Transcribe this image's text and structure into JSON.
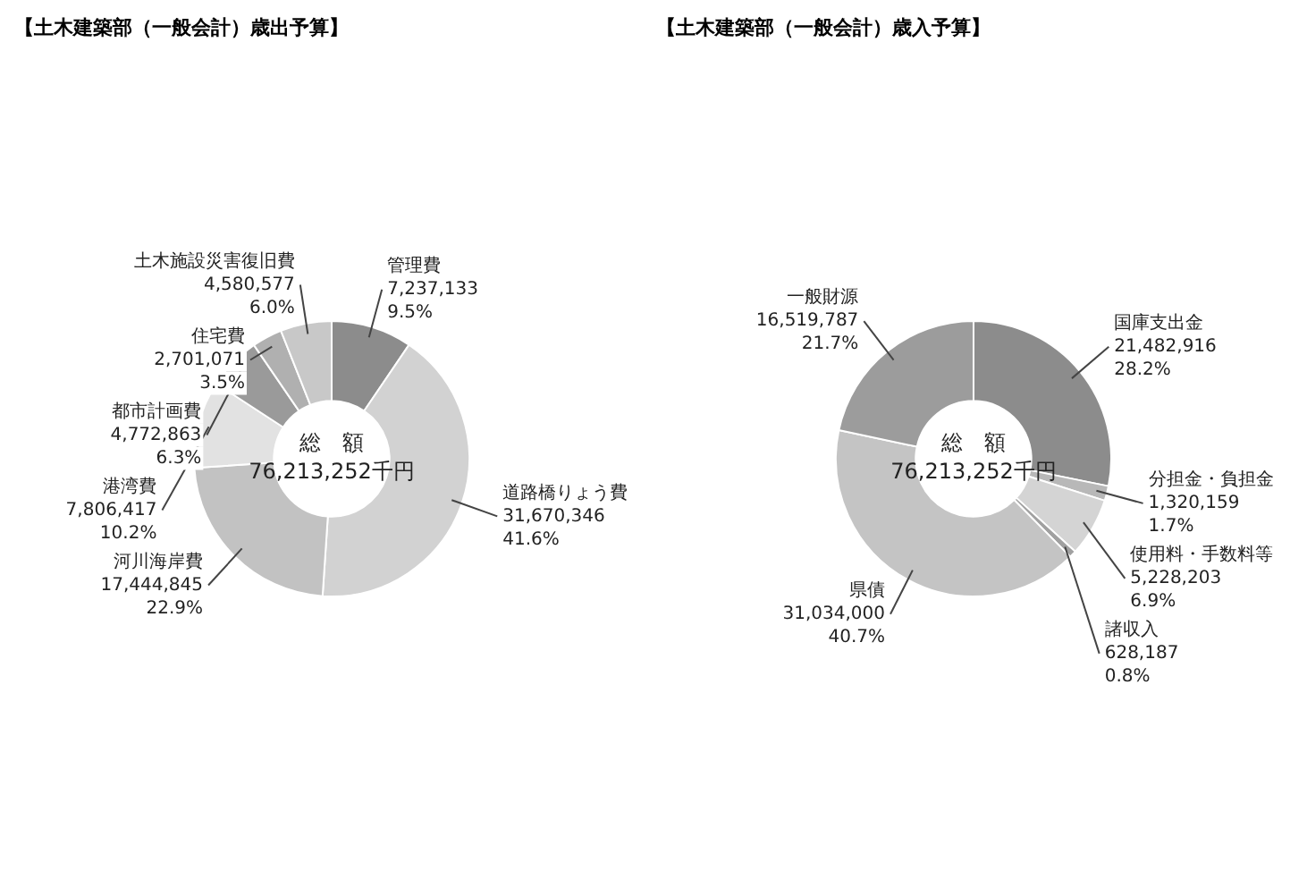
{
  "chart_data": [
    {
      "type": "donut",
      "title": "【土木建築部（一般会計）歳出予算】",
      "categories": [
        "管理費",
        "道路橋りょう費",
        "河川海岸費",
        "港湾費",
        "都市計画費",
        "住宅費",
        "土木施設災害復旧費"
      ],
      "values": [
        7237133,
        31670346,
        17444845,
        7806417,
        4772863,
        2701071,
        4580577
      ],
      "colors": [
        "#8c8c8c",
        "#d2d2d2",
        "#c2c2c2",
        "#e2e2e2",
        "#9a9a9a",
        "#b0b0b0",
        "#c8c8c8"
      ],
      "value_labels": [
        "7,237,133 9.5%",
        "31,670,346 41.6%",
        "17,444,845 22.9%",
        "7,806,417 10.2%",
        "4,772,863 6.3%",
        "2,701,071 3.5%",
        "4,580,577 6.0%"
      ],
      "annotations": [
        "総　額",
        "76,213,252千円"
      ],
      "legend": false
    },
    {
      "type": "donut",
      "title": "【土木建築部（一般会計）歳入予算】",
      "categories": [
        "国庫支出金",
        "分担金・負担金",
        "使用料・手数料等",
        "諸収入",
        "県債",
        "一般財源"
      ],
      "values": [
        21482916,
        1320159,
        5228203,
        628187,
        31034000,
        16519787
      ],
      "colors": [
        "#8c8c8c",
        "#b8b8b8",
        "#d4d4d4",
        "#a0a0a0",
        "#c4c4c4",
        "#9c9c9c"
      ],
      "value_labels": [
        "21,482,916 28.2%",
        "1,320,159 1.7%",
        "5,228,203 6.9%",
        "628,187 0.8%",
        "31,034,000 40.7%",
        "16,519,787 21.7%"
      ],
      "annotations": [
        "総　額",
        "76,213,252千円"
      ],
      "legend": false
    }
  ]
}
